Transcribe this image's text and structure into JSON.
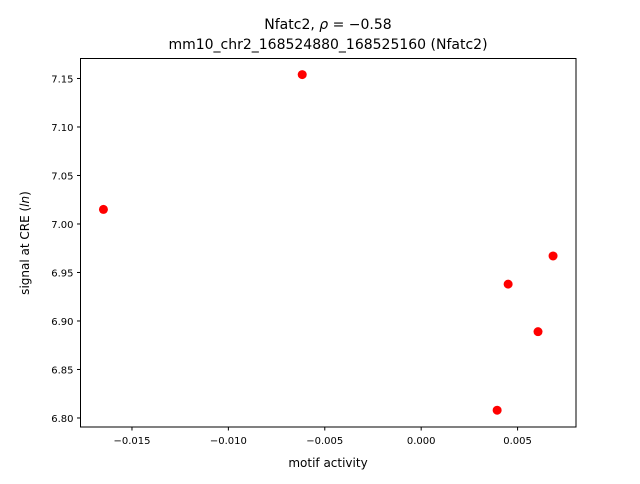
{
  "chart_data": {
    "type": "scatter",
    "title_line1_prefix": "Nfatc2, ",
    "title_line1_rho": "ρ",
    "title_line1_value": " = −0.58",
    "title_line2": "mm10_chr2_168524880_168525160 (Nfatc2)",
    "xlabel": "motif activity",
    "ylabel_prefix": "signal at CRE (",
    "ylabel_italic": "ln",
    "ylabel_suffix": ")",
    "xlim": [
      -0.01767,
      0.00803
    ],
    "ylim": [
      6.7907,
      7.1706
    ],
    "xticks": [
      -0.015,
      -0.01,
      -0.005,
      0.0,
      0.005
    ],
    "xtick_labels": [
      "−0.015",
      "−0.010",
      "−0.005",
      "0.000",
      "0.005"
    ],
    "yticks": [
      6.8,
      6.85,
      6.9,
      6.95,
      7.0,
      7.05,
      7.1,
      7.15
    ],
    "ytick_labels": [
      "6.80",
      "6.85",
      "6.90",
      "6.95",
      "7.00",
      "7.05",
      "7.10",
      "7.15"
    ],
    "grid": false,
    "marker_color": "#ff0000",
    "points": [
      {
        "x": -0.01648,
        "y": 7.015
      },
      {
        "x": -0.00617,
        "y": 7.154
      },
      {
        "x": 0.00684,
        "y": 6.967
      },
      {
        "x": 0.00451,
        "y": 6.938
      },
      {
        "x": 0.00606,
        "y": 6.889
      },
      {
        "x": 0.00394,
        "y": 6.808
      }
    ]
  }
}
